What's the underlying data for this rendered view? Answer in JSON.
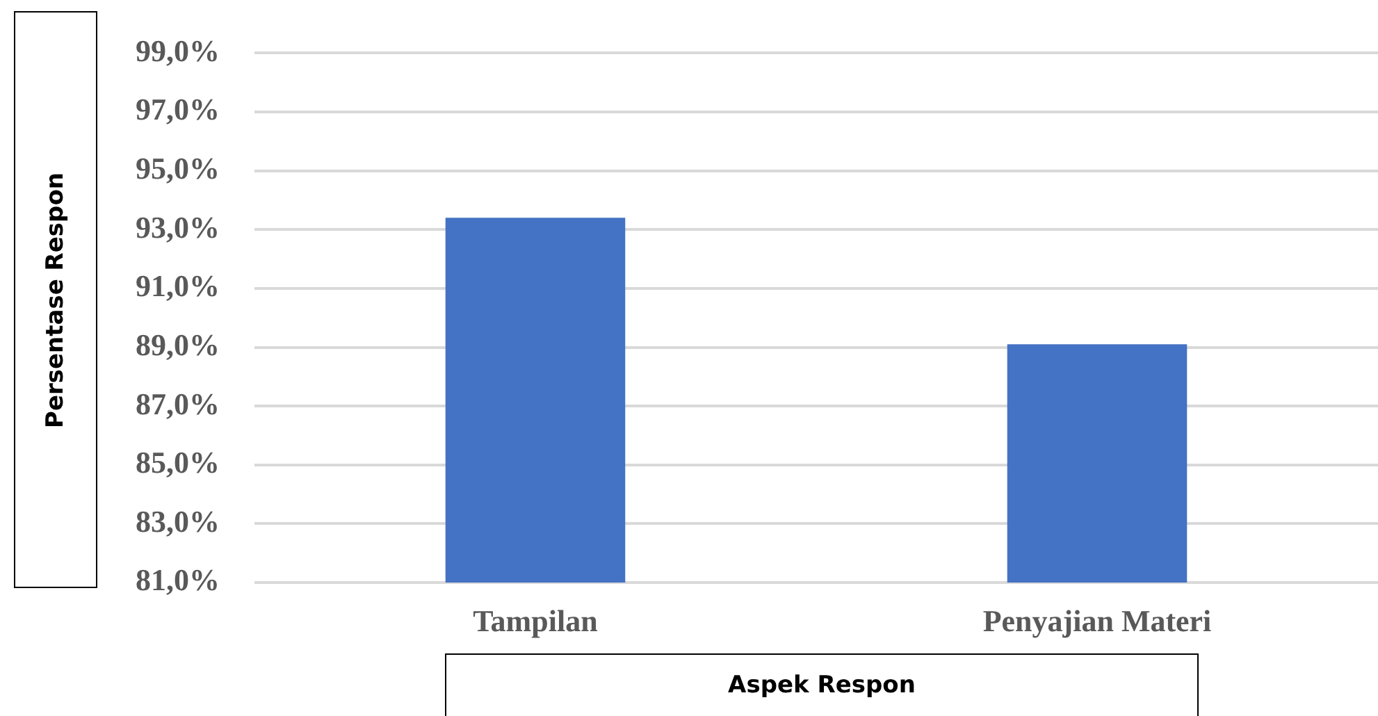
{
  "chart_data": {
    "type": "bar",
    "xlabel": "Aspek Respon",
    "ylabel": "Persentase Respon",
    "categories": [
      "Tampilan",
      "Penyajian Materi"
    ],
    "values": [
      93.4,
      89.1
    ],
    "color": "#4472c4",
    "ylim": [
      81,
      99
    ],
    "yticks": [
      {
        "value": 81,
        "label": "81,0%"
      },
      {
        "value": 83,
        "label": "83,0%"
      },
      {
        "value": 85,
        "label": "85,0%"
      },
      {
        "value": 87,
        "label": "87,0%"
      },
      {
        "value": 89,
        "label": "89,0%"
      },
      {
        "value": 91,
        "label": "91,0%"
      },
      {
        "value": 93,
        "label": "93,0%"
      },
      {
        "value": 95,
        "label": "95,0%"
      },
      {
        "value": 97,
        "label": "97,0%"
      },
      {
        "value": 99,
        "label": "99,0%"
      }
    ],
    "grid": "y",
    "legend": false
  }
}
